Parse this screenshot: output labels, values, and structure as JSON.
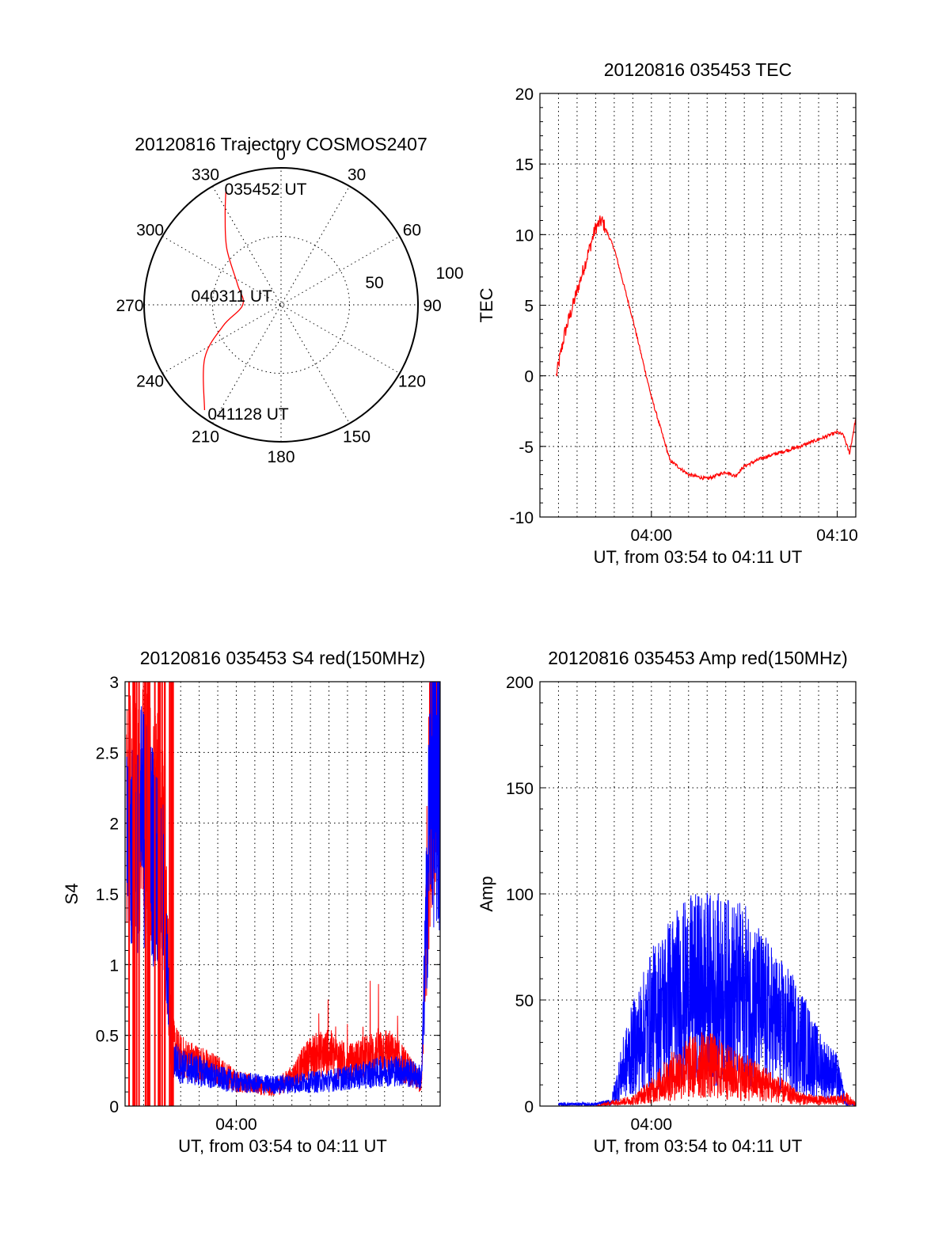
{
  "chart_data": [
    {
      "type": "polar",
      "title": "20120816 Trajectory COSMOS2407",
      "angle_labels": [
        "0",
        "30",
        "60",
        "90",
        "120",
        "150",
        "180",
        "210",
        "240",
        "270",
        "300",
        "330"
      ],
      "ring_labels": [
        "50",
        "100"
      ],
      "rlim": [
        0,
        100
      ],
      "grid": true,
      "colors": {
        "track": "#ff0000"
      },
      "trajectory": [
        [
          335,
          95
        ],
        [
          328,
          77
        ],
        [
          316,
          57
        ],
        [
          295,
          35
        ],
        [
          270,
          28
        ],
        [
          250,
          45
        ],
        [
          235,
          68
        ],
        [
          216,
          95
        ]
      ],
      "annotations": [
        {
          "text": "035452 UT",
          "azimuth": 335,
          "radius": 95
        },
        {
          "text": "040311 UT",
          "azimuth": 270,
          "radius": 28
        },
        {
          "text": "041128 UT",
          "azimuth": 216,
          "radius": 95
        }
      ]
    },
    {
      "type": "line",
      "title": "20120816 035453 TEC",
      "xlabel": "UT, from 03:54 to 04:11 UT",
      "ylabel": "TEC",
      "xlim": [
        "03:54:00",
        "04:11:00"
      ],
      "ylim": [
        -10,
        20
      ],
      "yticks": [
        "20",
        "15",
        "10",
        "5",
        "0",
        "-5",
        "-10"
      ],
      "xticks": [
        {
          "t": "04:00:00",
          "label": "04:00"
        },
        {
          "t": "04:10:00",
          "label": "04:10"
        }
      ],
      "grid": true,
      "series": [
        {
          "color": "#ff0000",
          "x": [
            "03:54:53",
            "03:55:20",
            "03:56:00",
            "03:56:40",
            "03:57:00",
            "03:57:20",
            "03:58:00",
            "03:59:00",
            "04:00:00",
            "04:01:00",
            "04:02:00",
            "04:03:00",
            "04:04:00",
            "04:04:30",
            "04:05:00",
            "04:06:00",
            "04:07:00",
            "04:08:00",
            "04:09:00",
            "04:10:00",
            "04:10:20",
            "04:10:40",
            "04:11:00"
          ],
          "y": [
            0,
            3,
            6,
            9,
            10.5,
            11,
            9,
            4,
            -1.5,
            -6,
            -7,
            -7.3,
            -6.8,
            -7.1,
            -6.4,
            -5.8,
            -5.4,
            -5.0,
            -4.5,
            -4.0,
            -4.2,
            -5.5,
            -3.0
          ]
        }
      ]
    },
    {
      "type": "line",
      "title": "20120816 035453 S4 red(150MHz)",
      "xlabel": "UT, from 03:54 to 04:11 UT",
      "ylabel": "S4",
      "xlim": [
        "03:54:00",
        "04:11:00"
      ],
      "ylim": [
        0,
        3
      ],
      "yticks": [
        "3",
        "2.5",
        "2",
        "1.5",
        "1",
        "0.5",
        "0"
      ],
      "xticks": [
        {
          "t": "04:00:00",
          "label": "04:00"
        }
      ],
      "grid": true,
      "series": [
        {
          "color": "#ff0000",
          "x": [
            "03:54:05",
            "03:55:00",
            "03:56:00",
            "03:56:30",
            "03:57:00",
            "03:58:00",
            "03:59:00",
            "04:00:00",
            "04:01:00",
            "04:02:00",
            "04:03:00",
            "04:04:00",
            "04:05:00",
            "04:06:00",
            "04:07:00",
            "04:08:00",
            "04:09:00",
            "04:10:00",
            "04:10:30",
            "04:11:00"
          ],
          "y": [
            2.0,
            2.2,
            1.9,
            0.45,
            0.35,
            0.3,
            0.25,
            0.18,
            0.15,
            0.12,
            0.2,
            0.35,
            0.38,
            0.3,
            0.35,
            0.4,
            0.3,
            0.15,
            2.5,
            3.0
          ]
        },
        {
          "color": "#0000ff",
          "x": [
            "03:54:05",
            "03:55:00",
            "03:56:00",
            "03:56:30",
            "03:57:00",
            "03:58:00",
            "03:59:00",
            "04:00:00",
            "04:01:00",
            "04:02:00",
            "04:03:00",
            "04:04:00",
            "04:05:00",
            "04:06:00",
            "04:07:00",
            "04:08:00",
            "04:09:00",
            "04:10:00",
            "04:10:30",
            "04:11:00"
          ],
          "y": [
            1.8,
            2.0,
            1.6,
            0.35,
            0.28,
            0.25,
            0.2,
            0.17,
            0.16,
            0.15,
            0.16,
            0.17,
            0.18,
            0.2,
            0.22,
            0.25,
            0.25,
            0.2,
            2.4,
            2.0
          ]
        }
      ]
    },
    {
      "type": "line",
      "title": "20120816 035453 Amp red(150MHz)",
      "xlabel": "UT, from 03:54 to 04:11 UT",
      "ylabel": "Amp",
      "xlim": [
        "03:54:00",
        "04:11:00"
      ],
      "ylim": [
        0,
        200
      ],
      "yticks": [
        "200",
        "150",
        "100",
        "50",
        "0"
      ],
      "xticks": [
        {
          "t": "04:00:00",
          "label": "04:00"
        }
      ],
      "grid": true,
      "series": [
        {
          "color": "#0000ff",
          "x": [
            "03:55:00",
            "03:57:00",
            "03:57:50",
            "03:58:30",
            "03:59:00",
            "04:00:00",
            "04:01:00",
            "04:02:00",
            "04:03:00",
            "04:04:00",
            "04:05:00",
            "04:06:00",
            "04:07:00",
            "04:08:00",
            "04:09:00",
            "04:10:00",
            "04:10:30",
            "04:11:00"
          ],
          "y": [
            1,
            1,
            2,
            20,
            30,
            45,
            55,
            60,
            62,
            60,
            58,
            50,
            42,
            35,
            22,
            15,
            1,
            1
          ]
        },
        {
          "color": "#ff0000",
          "x": [
            "03:55:00",
            "03:57:00",
            "03:58:00",
            "03:59:00",
            "04:00:00",
            "04:01:00",
            "04:02:00",
            "04:03:00",
            "04:04:00",
            "04:05:00",
            "04:06:00",
            "04:07:00",
            "04:08:00",
            "04:09:00",
            "04:10:00",
            "04:10:30",
            "04:11:00"
          ],
          "y": [
            0,
            0,
            2,
            3,
            8,
            15,
            20,
            22,
            18,
            15,
            12,
            8,
            4,
            3,
            3,
            4,
            1
          ]
        }
      ]
    }
  ]
}
